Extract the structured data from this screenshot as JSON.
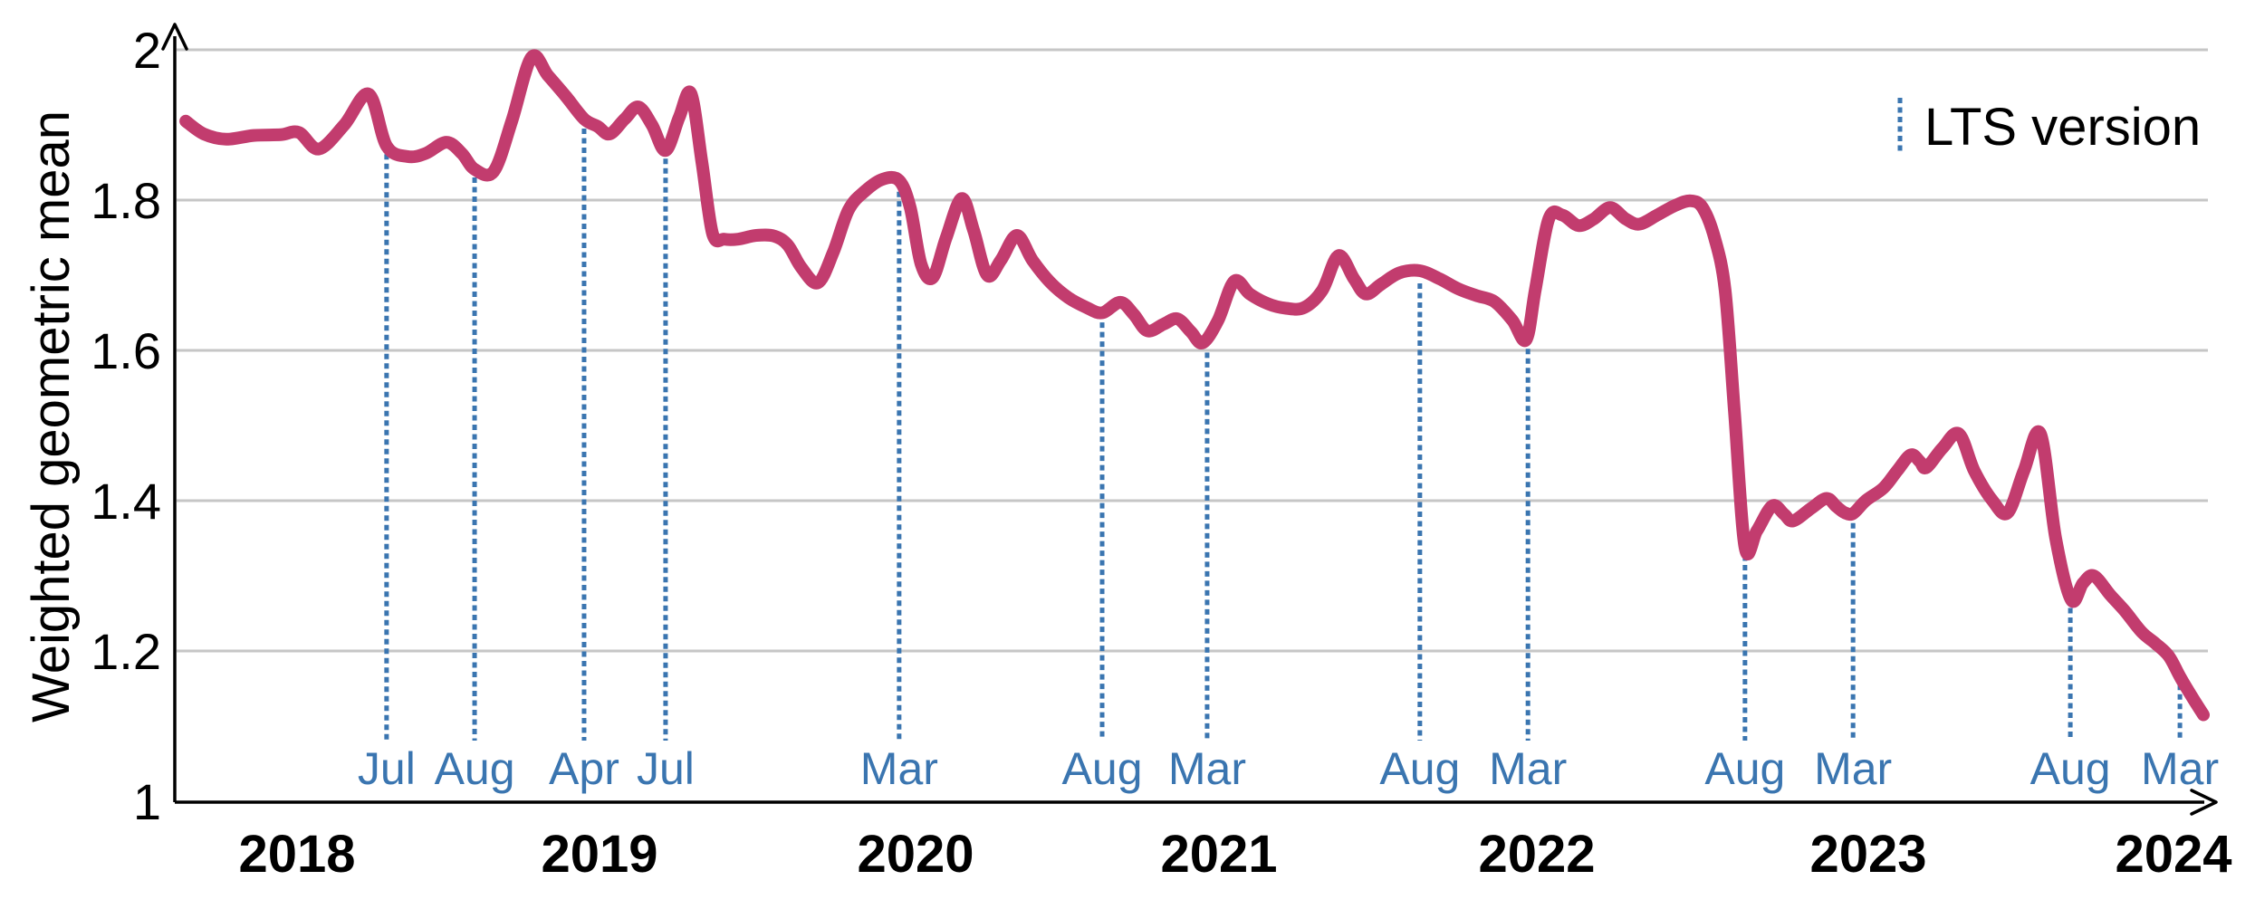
{
  "figure": {
    "background": "#ffffff",
    "line_color": "#c23c6e",
    "marker_color": "#3a75b0",
    "grid_color": "#c6c6c6",
    "axis_color": "#000000",
    "text_color": "#000000"
  },
  "chart_data": {
    "type": "line",
    "title": "",
    "xlabel": "",
    "ylabel": "Weighted geometric mean",
    "ylim": [
      1.0,
      2.0
    ],
    "grid": "horizontal-only",
    "legend": {
      "position": "top-right",
      "entries": [
        {
          "label": "LTS version",
          "style": "vertical-dotted-line",
          "color": "#3a75b0"
        }
      ]
    },
    "y_ticks": [
      {
        "value": 2.0,
        "label": "2"
      },
      {
        "value": 1.8,
        "label": "1.8"
      },
      {
        "value": 1.6,
        "label": "1.6"
      },
      {
        "value": 1.4,
        "label": "1.4"
      },
      {
        "value": 1.2,
        "label": "1.2"
      },
      {
        "value": 1.0,
        "label": "1"
      }
    ],
    "x_ticks": [
      {
        "year": 2018,
        "label": "2018"
      },
      {
        "year": 2019,
        "label": "2019"
      },
      {
        "year": 2020,
        "label": "2020"
      },
      {
        "year": 2021,
        "label": "2021"
      },
      {
        "year": 2022,
        "label": "2022"
      },
      {
        "year": 2023,
        "label": "2023"
      },
      {
        "year": 2024,
        "label": "2024"
      }
    ],
    "lts_markers": [
      {
        "label": "Jul",
        "x": 2018.296,
        "y_top": 1.872
      },
      {
        "label": "Aug",
        "x": 2018.587,
        "y_top": 1.841
      },
      {
        "label": "Apr",
        "x": 2018.949,
        "y_top": 1.906
      },
      {
        "label": "Jul",
        "x": 2019.209,
        "y_top": 1.866
      },
      {
        "label": "Mar",
        "x": 2019.948,
        "y_top": 1.822
      },
      {
        "label": "Aug",
        "x": 2020.615,
        "y_top": 1.648
      },
      {
        "label": "Mar",
        "x": 2020.961,
        "y_top": 1.608
      },
      {
        "label": "Aug",
        "x": 2021.632,
        "y_top": 1.7
      },
      {
        "label": "Mar",
        "x": 2021.972,
        "y_top": 1.613
      },
      {
        "label": "Aug",
        "x": 2022.628,
        "y_top": 1.338
      },
      {
        "label": "Mar",
        "x": 2022.954,
        "y_top": 1.381
      },
      {
        "label": "Aug",
        "x": 2023.662,
        "y_top": 1.268
      },
      {
        "label": "Mar",
        "x": 2024.021,
        "y_top": 1.166
      }
    ],
    "series": [
      {
        "name": "Weighted geometric mean",
        "color": "#c23c6e",
        "points": [
          [
            2017.632,
            1.905
          ],
          [
            2017.692,
            1.888
          ],
          [
            2017.766,
            1.881
          ],
          [
            2017.856,
            1.886
          ],
          [
            2017.946,
            1.887
          ],
          [
            2018.006,
            1.89
          ],
          [
            2018.072,
            1.868
          ],
          [
            2018.156,
            1.9
          ],
          [
            2018.237,
            1.941
          ],
          [
            2018.296,
            1.872
          ],
          [
            2018.365,
            1.858
          ],
          [
            2018.425,
            1.862
          ],
          [
            2018.494,
            1.877
          ],
          [
            2018.545,
            1.862
          ],
          [
            2018.587,
            1.841
          ],
          [
            2018.65,
            1.838
          ],
          [
            2018.71,
            1.905
          ],
          [
            2018.775,
            1.99
          ],
          [
            2018.829,
            1.966
          ],
          [
            2018.889,
            1.938
          ],
          [
            2018.949,
            1.908
          ],
          [
            2018.994,
            1.898
          ],
          [
            2019.032,
            1.888
          ],
          [
            2019.08,
            1.908
          ],
          [
            2019.123,
            1.924
          ],
          [
            2019.166,
            1.9
          ],
          [
            2019.209,
            1.866
          ],
          [
            2019.252,
            1.91
          ],
          [
            2019.289,
            1.942
          ],
          [
            2019.324,
            1.85
          ],
          [
            2019.358,
            1.755
          ],
          [
            2019.395,
            1.748
          ],
          [
            2019.438,
            1.748
          ],
          [
            2019.496,
            1.753
          ],
          [
            2019.553,
            1.752
          ],
          [
            2019.596,
            1.74
          ],
          [
            2019.639,
            1.71
          ],
          [
            2019.691,
            1.69
          ],
          [
            2019.739,
            1.73
          ],
          [
            2019.788,
            1.787
          ],
          [
            2019.84,
            1.812
          ],
          [
            2019.897,
            1.828
          ],
          [
            2019.948,
            1.826
          ],
          [
            2019.983,
            1.79
          ],
          [
            2020.018,
            1.715
          ],
          [
            2020.057,
            1.697
          ],
          [
            2020.101,
            1.75
          ],
          [
            2020.152,
            1.802
          ],
          [
            2020.191,
            1.76
          ],
          [
            2020.236,
            1.7
          ],
          [
            2020.281,
            1.72
          ],
          [
            2020.334,
            1.753
          ],
          [
            2020.385,
            1.72
          ],
          [
            2020.445,
            1.69
          ],
          [
            2020.504,
            1.67
          ],
          [
            2020.564,
            1.657
          ],
          [
            2020.615,
            1.65
          ],
          [
            2020.675,
            1.664
          ],
          [
            2020.719,
            1.648
          ],
          [
            2020.764,
            1.626
          ],
          [
            2020.818,
            1.635
          ],
          [
            2020.863,
            1.642
          ],
          [
            2020.907,
            1.625
          ],
          [
            2020.946,
            1.61
          ],
          [
            2020.997,
            1.64
          ],
          [
            2021.048,
            1.692
          ],
          [
            2021.097,
            1.675
          ],
          [
            2021.154,
            1.662
          ],
          [
            2021.211,
            1.656
          ],
          [
            2021.268,
            1.657
          ],
          [
            2021.325,
            1.68
          ],
          [
            2021.376,
            1.726
          ],
          [
            2021.425,
            1.695
          ],
          [
            2021.462,
            1.675
          ],
          [
            2021.51,
            1.688
          ],
          [
            2021.567,
            1.703
          ],
          [
            2021.632,
            1.706
          ],
          [
            2021.695,
            1.695
          ],
          [
            2021.752,
            1.682
          ],
          [
            2021.809,
            1.673
          ],
          [
            2021.866,
            1.665
          ],
          [
            2021.923,
            1.64
          ],
          [
            2021.966,
            1.614
          ],
          [
            2021.995,
            1.68
          ],
          [
            2022.036,
            1.775
          ],
          [
            2022.077,
            1.78
          ],
          [
            2022.126,
            1.766
          ],
          [
            2022.172,
            1.775
          ],
          [
            2022.221,
            1.79
          ],
          [
            2022.268,
            1.775
          ],
          [
            2022.309,
            1.768
          ],
          [
            2022.363,
            1.78
          ],
          [
            2022.418,
            1.793
          ],
          [
            2022.464,
            1.799
          ],
          [
            2022.5,
            1.79
          ],
          [
            2022.536,
            1.75
          ],
          [
            2022.568,
            1.68
          ],
          [
            2022.596,
            1.52
          ],
          [
            2022.628,
            1.338
          ],
          [
            2022.664,
            1.36
          ],
          [
            2022.71,
            1.393
          ],
          [
            2022.746,
            1.382
          ],
          [
            2022.773,
            1.373
          ],
          [
            2022.828,
            1.39
          ],
          [
            2022.874,
            1.403
          ],
          [
            2022.904,
            1.392
          ],
          [
            2022.929,
            1.384
          ],
          [
            2022.954,
            1.383
          ],
          [
            2022.992,
            1.4
          ],
          [
            2023.05,
            1.417
          ],
          [
            2023.095,
            1.44
          ],
          [
            2023.139,
            1.461
          ],
          [
            2023.169,
            1.452
          ],
          [
            2023.19,
            1.444
          ],
          [
            2023.243,
            1.47
          ],
          [
            2023.297,
            1.489
          ],
          [
            2023.347,
            1.44
          ],
          [
            2023.407,
            1.4
          ],
          [
            2023.457,
            1.384
          ],
          [
            2023.51,
            1.44
          ],
          [
            2023.564,
            1.489
          ],
          [
            2023.614,
            1.35
          ],
          [
            2023.665,
            1.268
          ],
          [
            2023.703,
            1.29
          ],
          [
            2023.739,
            1.3
          ],
          [
            2023.792,
            1.275
          ],
          [
            2023.843,
            1.252
          ],
          [
            2023.896,
            1.225
          ],
          [
            2023.941,
            1.21
          ],
          [
            2023.985,
            1.193
          ],
          [
            2024.021,
            1.166
          ],
          [
            2024.059,
            1.14
          ],
          [
            2024.098,
            1.115
          ]
        ]
      }
    ]
  }
}
